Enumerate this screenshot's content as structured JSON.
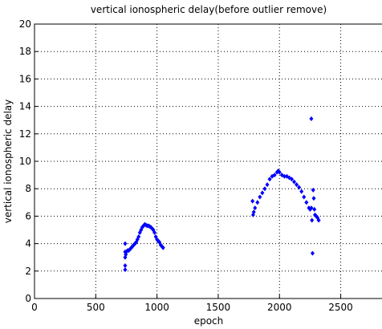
{
  "chart_data": {
    "type": "scatter",
    "title": "vertical ionospheric delay(before outlier remove)",
    "xlabel": "epoch",
    "ylabel": "vertical ionospheric delay",
    "xlim": [
      0,
      2837
    ],
    "ylim": [
      0,
      20
    ],
    "xticks": [
      0,
      500,
      1000,
      1500,
      2000,
      2500
    ],
    "yticks": [
      0,
      2,
      4,
      6,
      8,
      10,
      12,
      14,
      16,
      18,
      20
    ],
    "grid": true,
    "series": [
      {
        "color": "#0000ff",
        "x": [
          740,
          740,
          740,
          740,
          740,
          745,
          750,
          760,
          770,
          780,
          790,
          800,
          810,
          820,
          830,
          840,
          850,
          860,
          870,
          880,
          890,
          900,
          910,
          920,
          930,
          940,
          950,
          960,
          970,
          980,
          990,
          1000,
          1010,
          1020,
          1030,
          1040,
          1050,
          1780,
          1785,
          1790,
          1800,
          1820,
          1840,
          1860,
          1880,
          1900,
          1920,
          1940,
          1960,
          1980,
          1990,
          2000,
          2020,
          2040,
          2060,
          2080,
          2100,
          2120,
          2140,
          2160,
          2180,
          2200,
          2220,
          2240,
          2250,
          2260,
          2260,
          2265,
          2270,
          2275,
          2280,
          2285,
          2290,
          2300,
          2310,
          2320
        ],
        "values": [
          2.1,
          2.4,
          3.0,
          3.4,
          4.0,
          3.2,
          3.4,
          3.5,
          3.5,
          3.6,
          3.7,
          3.8,
          3.9,
          4.0,
          4.1,
          4.3,
          4.5,
          4.8,
          5.0,
          5.2,
          5.3,
          5.4,
          5.35,
          5.3,
          5.3,
          5.25,
          5.2,
          5.1,
          5.0,
          4.8,
          4.5,
          4.3,
          4.2,
          4.1,
          3.9,
          3.8,
          3.7,
          7.1,
          6.1,
          6.3,
          6.6,
          7.0,
          7.4,
          7.7,
          8.0,
          8.3,
          8.7,
          8.9,
          9.0,
          9.2,
          9.3,
          9.2,
          9.0,
          8.9,
          8.9,
          8.8,
          8.7,
          8.5,
          8.3,
          8.1,
          7.8,
          7.4,
          7.0,
          6.6,
          6.5,
          6.6,
          13.1,
          5.7,
          3.3,
          7.9,
          7.3,
          6.5,
          6.1,
          6.0,
          5.9,
          5.7
        ]
      }
    ]
  }
}
